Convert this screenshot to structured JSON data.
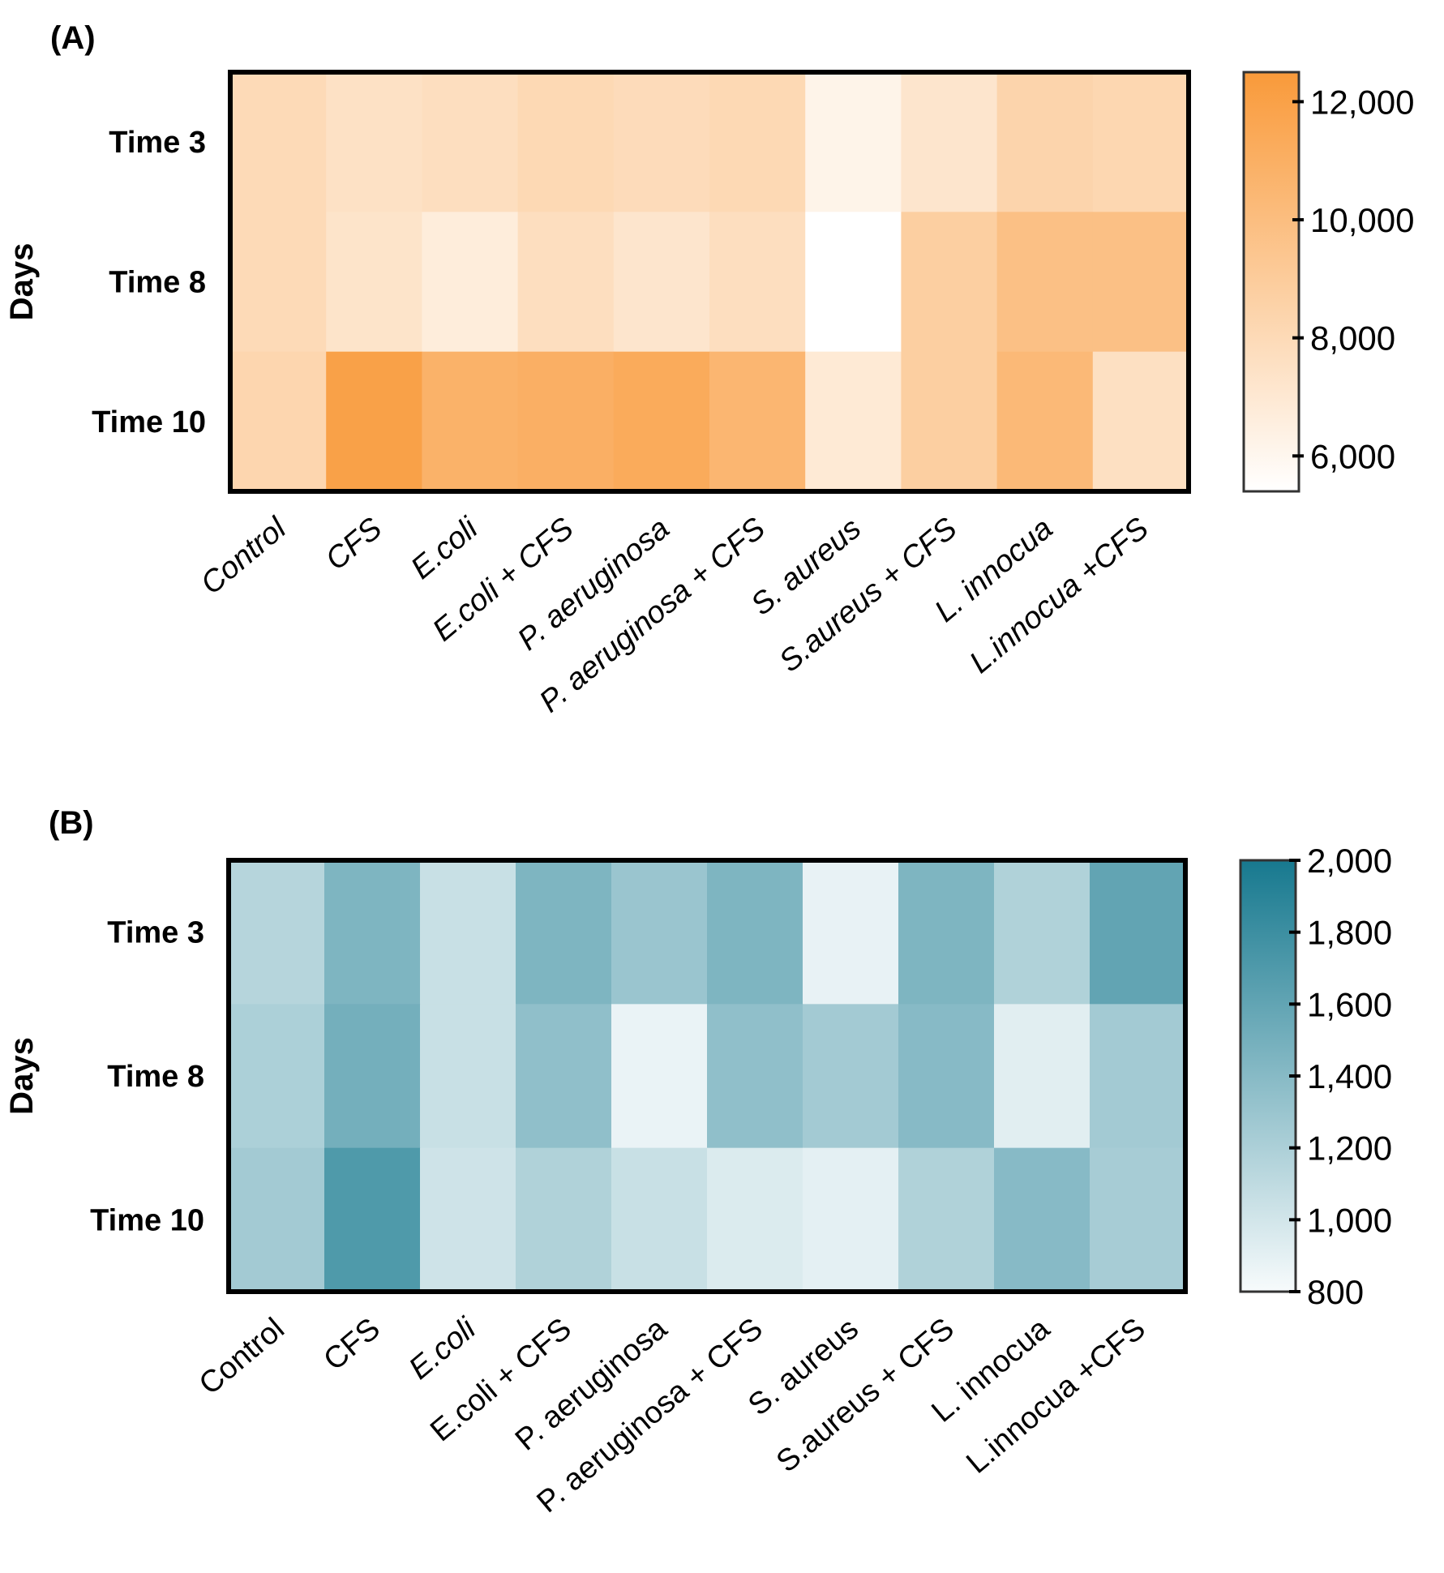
{
  "chart_data": [
    {
      "type": "heatmap",
      "panel_label": "(A)",
      "ylabel": "Days",
      "rows": [
        "Time 3",
        "Time 8",
        "Time 10"
      ],
      "columns": [
        "Control",
        "CFS",
        "E.coli",
        "E.coli + CFS",
        "P. aeruginosa",
        "P. aeruginosa + CFS",
        "S. aureus",
        "S.aureus + CFS",
        "L. innocua",
        "L.innocua +CFS"
      ],
      "values": [
        [
          8000,
          7500,
          7700,
          8100,
          7900,
          8100,
          6200,
          7200,
          8400,
          8200
        ],
        [
          8000,
          7300,
          6700,
          7700,
          7200,
          7700,
          5400,
          8800,
          9800,
          9800
        ],
        [
          8300,
          12000,
          10800,
          11000,
          11300,
          10500,
          6900,
          8800,
          10300,
          7600
        ]
      ],
      "colorbar": {
        "range": [
          5400,
          12500
        ],
        "ticks": [
          6000,
          8000,
          10000,
          12000
        ],
        "tick_labels": [
          "6,000",
          "8,000",
          "10,000",
          "12,000"
        ],
        "low_color": "#ffffff",
        "high_color": "#f99a3a"
      }
    },
    {
      "type": "heatmap",
      "panel_label": "(B)",
      "ylabel": "Days",
      "rows": [
        "Time 3",
        "Time 8",
        "Time 10"
      ],
      "columns": [
        "Control",
        "CFS",
        "E.coli",
        "E.coli + CFS",
        "P. aeruginosa",
        "P. aeruginosa + CFS",
        "S. aureus",
        "S.aureus + CFS",
        "L. innocua",
        "L.innocua +CFS"
      ],
      "values": [
        [
          1150,
          1450,
          1050,
          1450,
          1300,
          1450,
          880,
          1450,
          1180,
          1600
        ],
        [
          1200,
          1500,
          1050,
          1350,
          870,
          1350,
          1250,
          1400,
          920,
          1250
        ],
        [
          1250,
          1700,
          1020,
          1180,
          1050,
          950,
          900,
          1180,
          1400,
          1230
        ]
      ],
      "colorbar": {
        "range": [
          800,
          2000
        ],
        "ticks": [
          800,
          1000,
          1200,
          1400,
          1600,
          1800,
          2000
        ],
        "tick_labels": [
          "800",
          "1,000",
          "1,200",
          "1,400",
          "1,600",
          "1,800",
          "2,000"
        ],
        "low_color": "#f7fbfc",
        "high_color": "#17798f"
      }
    }
  ]
}
